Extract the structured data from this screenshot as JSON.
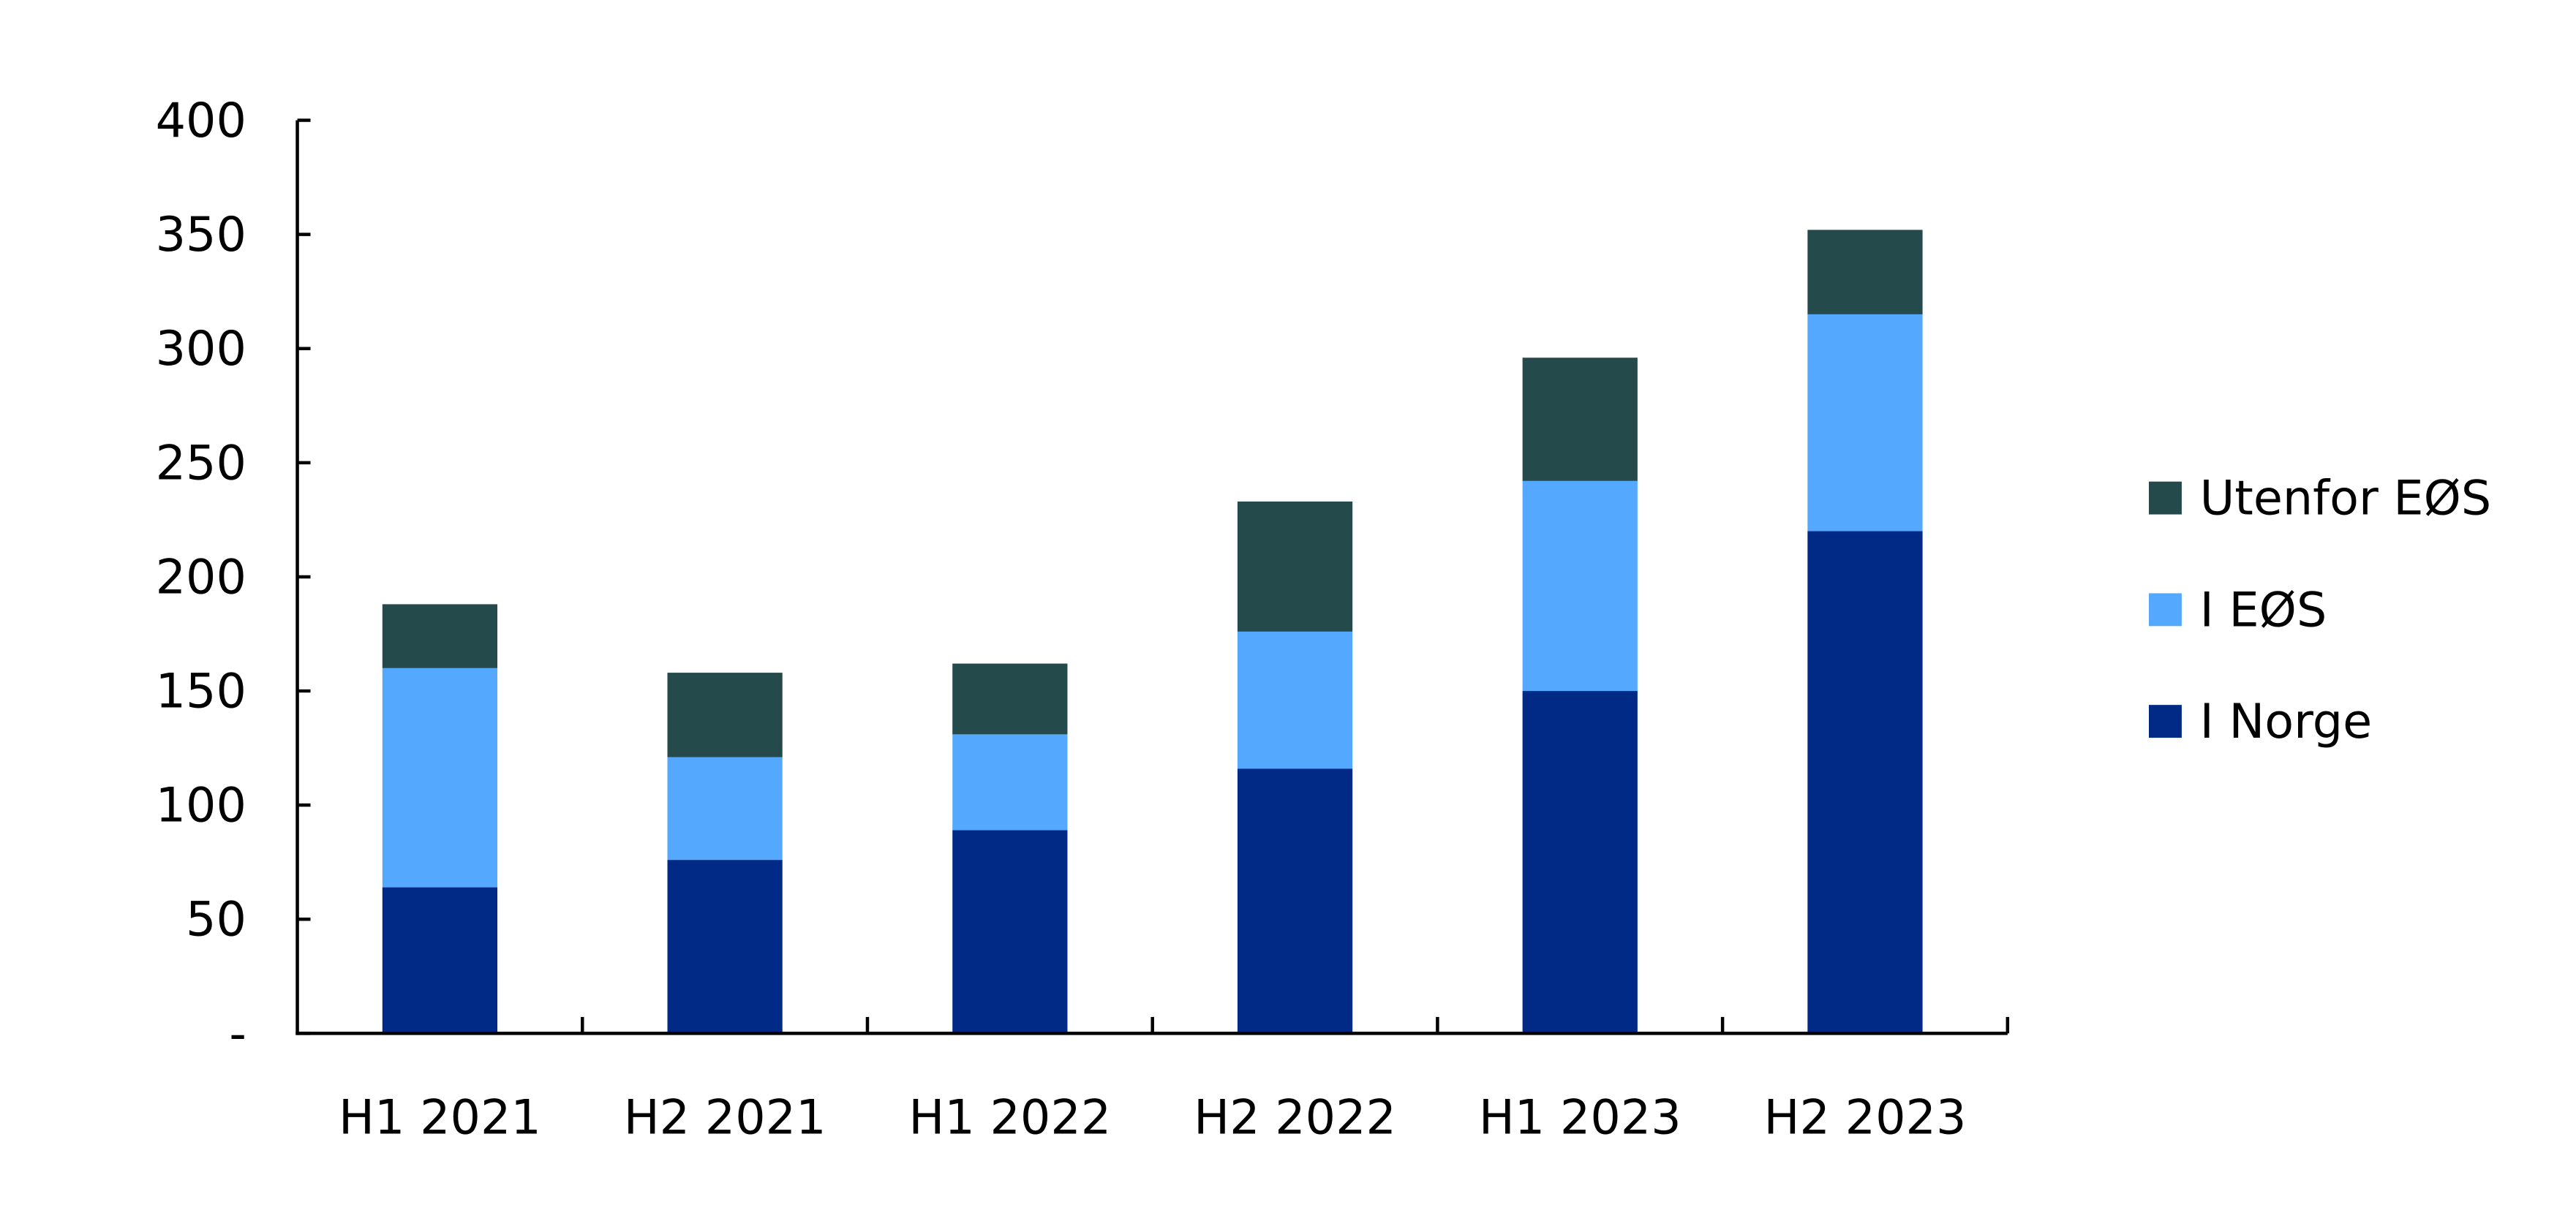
{
  "chart_data": {
    "type": "bar",
    "stacked": true,
    "title": "",
    "xlabel": "",
    "ylabel": "",
    "categories": [
      "H1 2021",
      "H2 2021",
      "H1 2022",
      "H2 2022",
      "H1 2023",
      "H2 2023"
    ],
    "series": [
      {
        "name": "I Norge",
        "color": "#002A85",
        "values": [
          64,
          76,
          89,
          116,
          150,
          220
        ]
      },
      {
        "name": "I EØS",
        "color": "#54A9FF",
        "values": [
          96,
          45,
          42,
          60,
          92,
          95
        ]
      },
      {
        "name": "Utenfor EØS",
        "color": "#254A4B",
        "values": [
          28,
          37,
          31,
          57,
          54,
          37
        ]
      }
    ],
    "ylim": [
      0,
      400
    ],
    "yticks": [
      0,
      50,
      100,
      150,
      200,
      250,
      300,
      350,
      400
    ],
    "ytick_labels": [
      "-",
      "50",
      "100",
      "150",
      "200",
      "250",
      "300",
      "350",
      "400"
    ],
    "grid": false,
    "legend_position": "right",
    "legend_order": [
      "Utenfor EØS",
      "I EØS",
      "I Norge"
    ]
  }
}
